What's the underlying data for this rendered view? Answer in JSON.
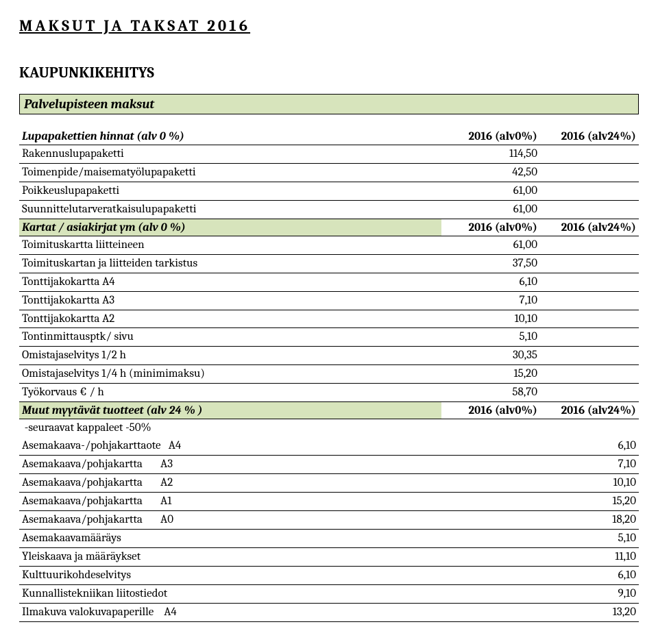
{
  "title": "MAKSUT JA TAKSAT 2016",
  "section_title": "KAUPUNKIKEHITYS",
  "bar1": "Palvelupisteen maksut",
  "colors": {
    "header_bg": "#d7e4bc",
    "border": "#000000",
    "text": "#000000",
    "page_bg": "#ffffff"
  },
  "hdr_cols": {
    "c1": "2016 (alv0%)",
    "c2": "2016 (alv24%)"
  },
  "groups": [
    {
      "header": "Lupapakettien hinnat (alv 0 %)",
      "header_green": false,
      "rows": [
        {
          "name": "Rakennuslupapaketti",
          "v1": "114,50",
          "v2": ""
        },
        {
          "name": "Toimenpide/maisematyölupapaketti",
          "v1": "42,50",
          "v2": ""
        },
        {
          "name": "Poikkeuslupapaketti",
          "v1": "61,00",
          "v2": ""
        },
        {
          "name": "Suunnittelutarveratkaisulupapaketti",
          "v1": "61,00",
          "v2": ""
        }
      ]
    },
    {
      "header": "Kartat / asiakirjat ym (alv 0 %)",
      "header_green": true,
      "rows": [
        {
          "name": "Toimituskartta liitteineen",
          "v1": "61,00",
          "v2": ""
        },
        {
          "name": "Toimituskartan ja liitteiden tarkistus",
          "v1": "37,50",
          "v2": ""
        },
        {
          "name": "Tonttijakokartta A4",
          "v1": "6,10",
          "v2": ""
        },
        {
          "name": "Tonttijakokartta A3",
          "v1": "7,10",
          "v2": ""
        },
        {
          "name": "Tonttijakokartta A2",
          "v1": "10,10",
          "v2": ""
        },
        {
          "name": "Tontinmittausptk/ sivu",
          "v1": "5,10",
          "v2": ""
        },
        {
          "name": "Omistajaselvitys 1/2 h",
          "v1": "30,35",
          "v2": ""
        },
        {
          "name": "Omistajaselvitys 1/4 h (minimimaksu)",
          "v1": "15,20",
          "v2": ""
        },
        {
          "name": "Työkorvaus € / h",
          "v1": "58,70",
          "v2": ""
        }
      ]
    },
    {
      "header": "Muut myytävät tuotteet (alv 24 % )",
      "header_green": true,
      "rows": [
        {
          "name": " -seuraavat kappaleet -50%",
          "v1": "",
          "v2": "",
          "noborder": true
        },
        {
          "name": "Asemakaava-/pohjakarttaote   A4",
          "v1": "",
          "v2": "6,10"
        },
        {
          "name": "Asemakaava/pohjakartta       A3",
          "v1": "",
          "v2": "7,10"
        },
        {
          "name": "Asemakaava/pohjakartta       A2",
          "v1": "",
          "v2": "10,10"
        },
        {
          "name": "Asemakaava/pohjakartta       A1",
          "v1": "",
          "v2": "15,20"
        },
        {
          "name": "Asemakaava/pohjakartta       A0",
          "v1": "",
          "v2": "18,20"
        },
        {
          "name": "Asemakaavamääräys",
          "v1": "",
          "v2": "5,10"
        },
        {
          "name": "Yleiskaava ja määräykset",
          "v1": "",
          "v2": "11,10"
        },
        {
          "name": "Kulttuurikohdeselvitys",
          "v1": "",
          "v2": "6,10"
        },
        {
          "name": "Kunnallistekniikan liitostiedot",
          "v1": "",
          "v2": "9,10"
        },
        {
          "name": "Ilmakuva valokuvapaperille    A4",
          "v1": "",
          "v2": "13,20"
        }
      ]
    }
  ]
}
